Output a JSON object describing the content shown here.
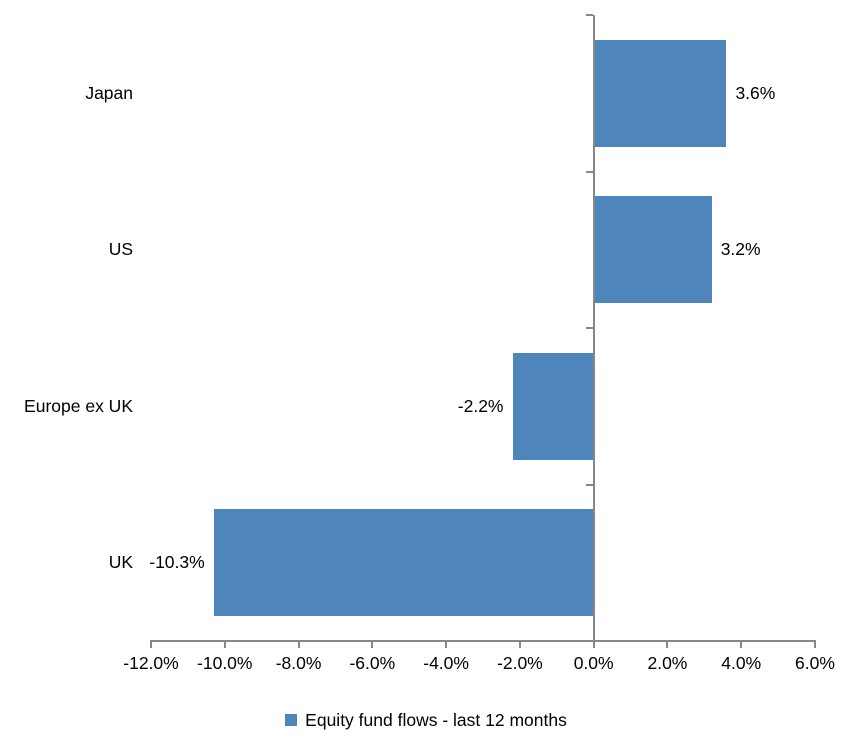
{
  "chart": {
    "background_color": "#ffffff",
    "bar_color": "#4E86BC",
    "axis_color": "#878787",
    "text_color": "#000000",
    "legend": {
      "marker_color": "#4E86BC",
      "label": "Equity fund flows - last 12 months"
    }
  },
  "chart_data": {
    "type": "bar",
    "orientation": "horizontal",
    "title": "",
    "categories": [
      "Japan",
      "US",
      "Europe ex UK",
      "UK"
    ],
    "series": [
      {
        "name": "Equity fund flows - last 12 months",
        "values": [
          3.6,
          3.2,
          -2.2,
          -10.3
        ],
        "data_labels": [
          "3.6%",
          "3.2%",
          "-2.2%",
          "-10.3%"
        ]
      }
    ],
    "xlim": [
      -12,
      6
    ],
    "x_tick_step": 2,
    "x_ticks": [
      {
        "value": -12,
        "label": "-12.0%"
      },
      {
        "value": -10,
        "label": "-10.0%"
      },
      {
        "value": -8,
        "label": "-8.0%"
      },
      {
        "value": -6,
        "label": "-6.0%"
      },
      {
        "value": -4,
        "label": "-4.0%"
      },
      {
        "value": -2,
        "label": "-2.0%"
      },
      {
        "value": 0,
        "label": "0.0%"
      },
      {
        "value": 2,
        "label": "2.0%"
      },
      {
        "value": 4,
        "label": "4.0%"
      },
      {
        "value": 6,
        "label": "6.0%"
      }
    ],
    "grid": false,
    "legend_position": "bottom-center",
    "data_label_position": "outside-end"
  }
}
